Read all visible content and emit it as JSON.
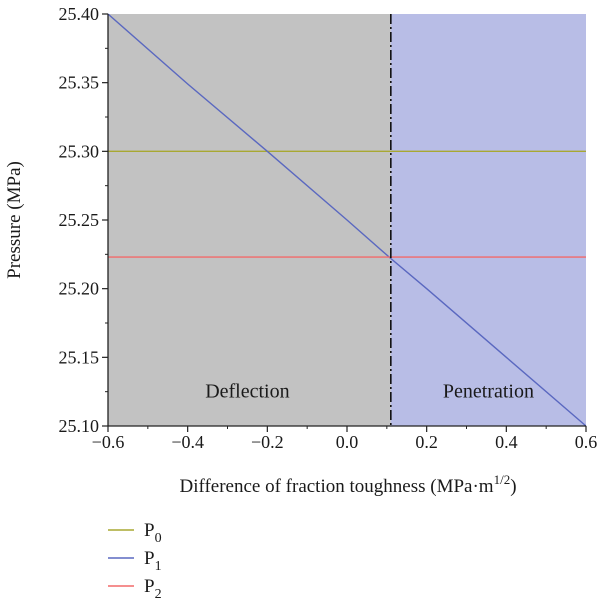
{
  "chart_data": {
    "type": "line",
    "xlabel_main": "Difference of fraction toughness (MPa·m",
    "xlabel_sup": "1/2",
    "xlabel_close": ")",
    "ylabel": "Pressure (MPa)",
    "xlim": [
      -0.6,
      0.6
    ],
    "ylim": [
      25.1,
      25.4
    ],
    "xticks": [
      -0.6,
      -0.4,
      -0.2,
      0.0,
      0.2,
      0.4,
      0.6
    ],
    "xtick_labels": [
      "−0.6",
      "−0.4",
      "−0.2",
      "0.0",
      "0.2",
      "0.4",
      "0.6"
    ],
    "yticks": [
      25.1,
      25.15,
      25.2,
      25.25,
      25.3,
      25.35,
      25.4
    ],
    "ytick_labels": [
      "25.10",
      "25.15",
      "25.20",
      "25.25",
      "25.30",
      "25.35",
      "25.40"
    ],
    "divider_x": 0.11,
    "regions": [
      {
        "label": "Deflection",
        "x_range": [
          -0.6,
          0.11
        ],
        "color": "#c2c2c2",
        "label_x": -0.25,
        "label_y": 25.125
      },
      {
        "label": "Penetration",
        "x_range": [
          0.11,
          0.6
        ],
        "color": "#b8bde6",
        "label_x": 0.355,
        "label_y": 25.125
      }
    ],
    "series": [
      {
        "name": "P",
        "subscript": "0",
        "color": "#a8a832",
        "x": [
          -0.6,
          0.6
        ],
        "y": [
          25.3,
          25.3
        ]
      },
      {
        "name": "P",
        "subscript": "1",
        "color": "#5a68c0",
        "x": [
          -0.6,
          -0.4,
          -0.2,
          0.0,
          0.11,
          0.2,
          0.4,
          0.6
        ],
        "y": [
          25.4,
          25.349,
          25.3,
          25.25,
          25.222,
          25.2,
          25.15,
          25.1
        ]
      },
      {
        "name": "P",
        "subscript": "2",
        "color": "#f26a6a",
        "x": [
          -0.6,
          0.6
        ],
        "y": [
          25.223,
          25.223
        ]
      }
    ],
    "legend_placement": "bottom-left"
  }
}
